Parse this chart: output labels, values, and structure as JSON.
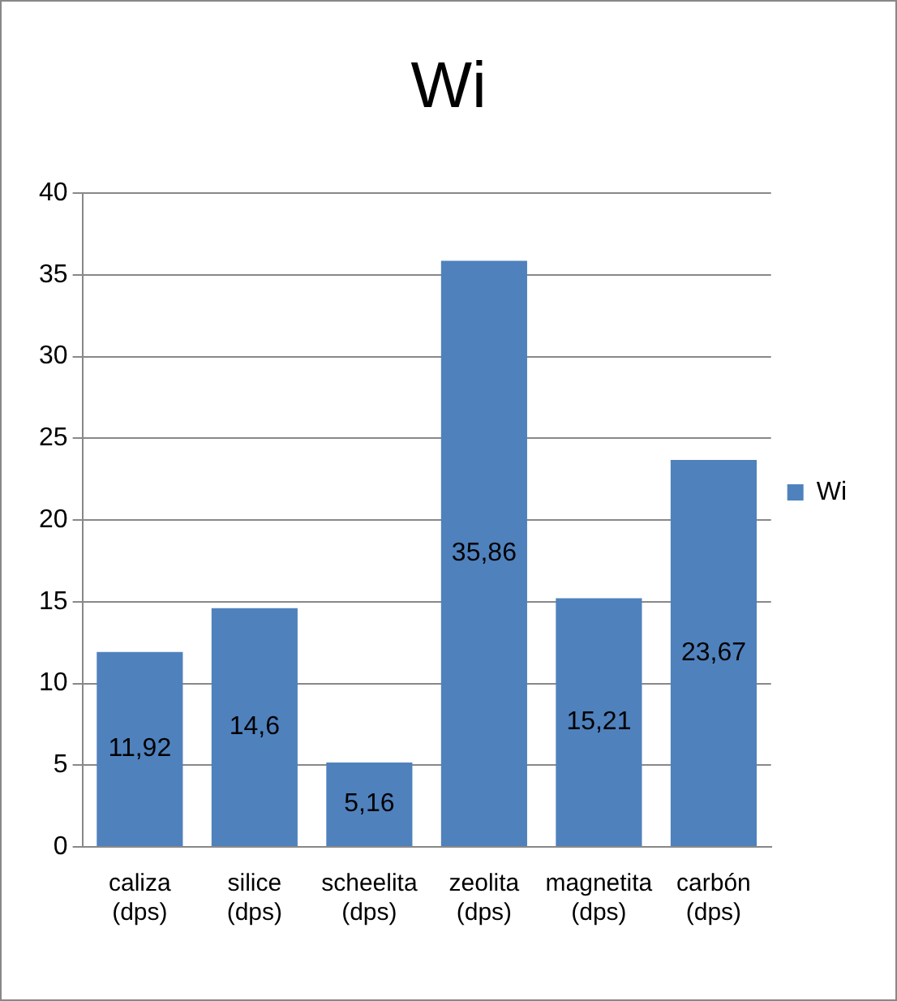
{
  "chart_data": {
    "type": "bar",
    "title": "Wi",
    "categories": [
      "caliza (dps)",
      "silice (dps)",
      "scheelita (dps)",
      "zeolita (dps)",
      "magnetita (dps)",
      "carbón (dps)"
    ],
    "series": [
      {
        "name": "Wi",
        "color": "#4f81bd",
        "values": [
          11.92,
          14.6,
          5.16,
          35.86,
          15.21,
          23.67
        ],
        "value_labels": [
          "11,92",
          "14,6",
          "5,16",
          "35,86",
          "15,21",
          "23,67"
        ]
      }
    ],
    "ylim": [
      0,
      40
    ],
    "yticks": [
      0,
      5,
      10,
      15,
      20,
      25,
      30,
      35,
      40
    ],
    "grid": "y",
    "legend": "right"
  }
}
